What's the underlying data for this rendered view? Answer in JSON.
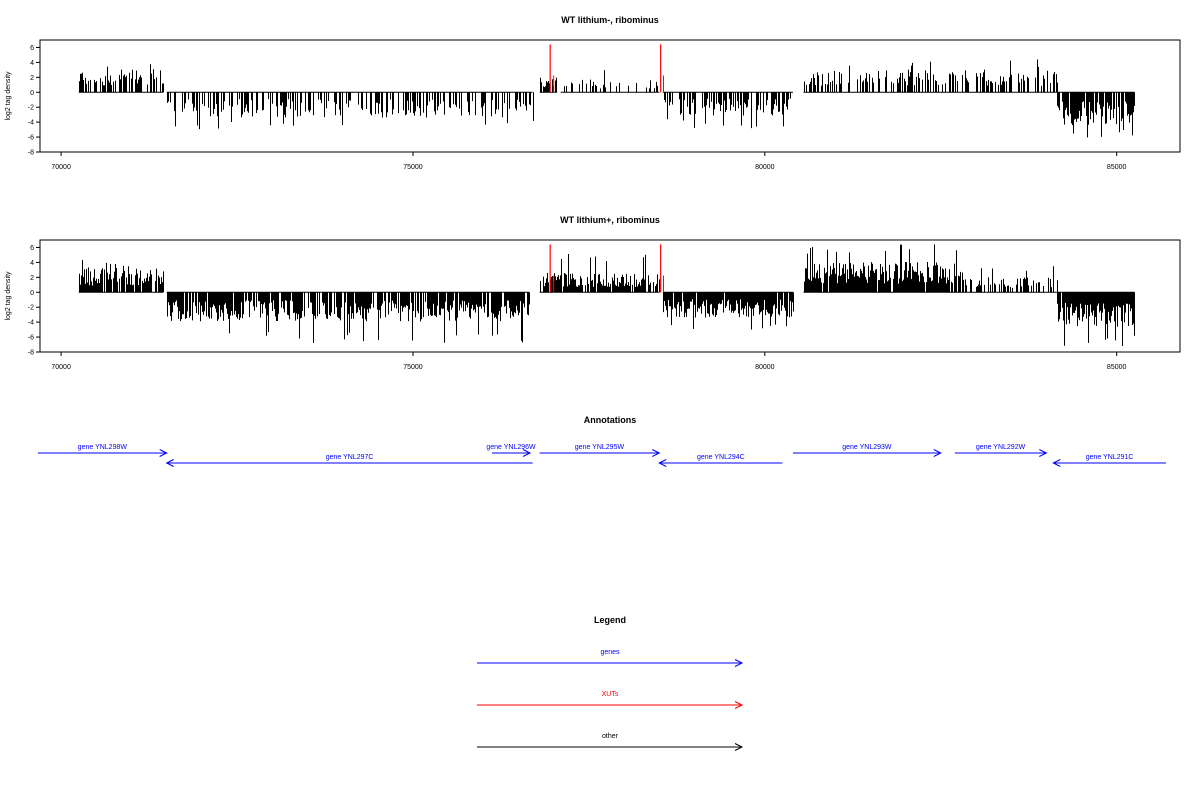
{
  "colors": {
    "gene": "#0000ff",
    "xut": "#ff0000",
    "other": "#000000",
    "density": "#000000"
  },
  "chart_data": [
    {
      "type": "bar",
      "title": "WT lithium-, ribominus",
      "ylabel": "log2 tag density",
      "xlim": [
        69700,
        85900
      ],
      "ylim": [
        -8,
        7
      ],
      "xticks": [
        "70000",
        "75000",
        "80000",
        "85000"
      ],
      "yticks": [
        "6",
        "4",
        "2",
        "0",
        "-2",
        "-4",
        "-6",
        "-8"
      ],
      "segments": [
        {
          "start": 70250,
          "end": 71450,
          "sign": 1,
          "mean": 2.4,
          "max": 3.9,
          "density": 0.55
        },
        {
          "start": 71500,
          "end": 76700,
          "sign": -1,
          "mean": 2.6,
          "max": 5.0,
          "density": 0.5
        },
        {
          "start": 76800,
          "end": 77050,
          "sign": 1,
          "mean": 1.6,
          "max": 3.8,
          "density": 0.9
        },
        {
          "start": 77100,
          "end": 78500,
          "sign": 1,
          "mean": 1.3,
          "max": 3.4,
          "density": 0.28
        },
        {
          "start": 78550,
          "end": 80400,
          "sign": -1,
          "mean": 2.4,
          "max": 4.8,
          "density": 0.55
        },
        {
          "start": 80550,
          "end": 84150,
          "sign": 1,
          "mean": 2.4,
          "max": 4.4,
          "density": 0.5
        },
        {
          "start": 84150,
          "end": 85250,
          "sign": -1,
          "mean": 3.4,
          "max": 6.2,
          "density": 0.85
        }
      ],
      "xuts": [
        {
          "start": 76950,
          "end": 77000,
          "max": 6.4
        },
        {
          "start": 78520,
          "end": 78560,
          "max": 6.4
        }
      ],
      "seed": 11
    },
    {
      "type": "bar",
      "title": "WT lithium+, ribominus",
      "ylabel": "log2 tag density",
      "xlim": [
        69700,
        85900
      ],
      "ylim": [
        -8,
        7
      ],
      "xticks": [
        "70000",
        "75000",
        "80000",
        "85000"
      ],
      "yticks": [
        "6",
        "4",
        "2",
        "0",
        "-2",
        "-4",
        "-6",
        "-8"
      ],
      "segments": [
        {
          "start": 70250,
          "end": 71450,
          "sign": 1,
          "mean": 2.6,
          "max": 4.6,
          "density": 0.9
        },
        {
          "start": 71500,
          "end": 76650,
          "sign": -1,
          "mean": 3.0,
          "max": 6.8,
          "density": 0.85
        },
        {
          "start": 76800,
          "end": 78500,
          "sign": 1,
          "mean": 2.0,
          "max": 5.5,
          "density": 0.8
        },
        {
          "start": 78550,
          "end": 80400,
          "sign": -1,
          "mean": 2.6,
          "max": 5.3,
          "density": 0.9
        },
        {
          "start": 80550,
          "end": 82800,
          "sign": 1,
          "mean": 3.2,
          "max": 6.4,
          "density": 0.95
        },
        {
          "start": 82800,
          "end": 84150,
          "sign": 1,
          "mean": 1.6,
          "max": 3.6,
          "density": 0.5
        },
        {
          "start": 84150,
          "end": 85250,
          "sign": -1,
          "mean": 3.6,
          "max": 7.4,
          "density": 0.95
        }
      ],
      "xuts": [
        {
          "start": 76950,
          "end": 77000,
          "max": 6.4
        },
        {
          "start": 78520,
          "end": 78560,
          "max": 6.4
        }
      ],
      "seed": 37
    }
  ],
  "annotations": {
    "title": "Annotations",
    "genes": [
      {
        "label": "gene YNL298W",
        "start": 69450,
        "end": 71500,
        "strand": "+",
        "row": 0
      },
      {
        "label": "gene YNL297C",
        "start": 71500,
        "end": 76700,
        "strand": "-",
        "row": 1
      },
      {
        "label": "gene YNL296W",
        "start": 76600,
        "end": 76700,
        "strand": "+",
        "row": 0
      },
      {
        "label": "gene YNL295W",
        "start": 76800,
        "end": 78500,
        "strand": "+",
        "row": 0
      },
      {
        "label": "gene YNL294C",
        "start": 78500,
        "end": 80250,
        "strand": "-",
        "row": 1
      },
      {
        "label": "gene YNL293W",
        "start": 80400,
        "end": 82500,
        "strand": "+",
        "row": 0
      },
      {
        "label": "gene YNL292W",
        "start": 82700,
        "end": 84000,
        "strand": "+",
        "row": 0
      },
      {
        "label": "gene YNL291C",
        "start": 84100,
        "end": 85700,
        "strand": "-",
        "row": 1
      }
    ]
  },
  "legend": {
    "title": "Legend",
    "items": [
      {
        "label": "genes",
        "color": "#0000ff"
      },
      {
        "label": "XUTs",
        "color": "#ff0000"
      },
      {
        "label": "other",
        "color": "#000000"
      }
    ]
  }
}
